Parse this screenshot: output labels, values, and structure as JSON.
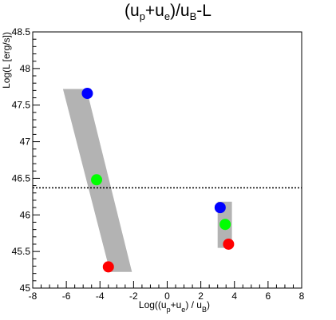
{
  "chart_data": {
    "type": "scatter",
    "title": {
      "parts": [
        {
          "t": "(u"
        },
        {
          "t": "p",
          "sub": true
        },
        {
          "t": "+u"
        },
        {
          "t": "e",
          "sub": true
        },
        {
          "t": ")/u"
        },
        {
          "t": "B",
          "sub": true
        },
        {
          "t": "-L"
        }
      ]
    },
    "xlabel": {
      "parts": [
        {
          "t": "Log((u"
        },
        {
          "t": "p",
          "sub": true
        },
        {
          "t": "+u"
        },
        {
          "t": "e",
          "sub": true
        },
        {
          "t": ") / u"
        },
        {
          "t": "B",
          "sub": true
        },
        {
          "t": ")"
        }
      ]
    },
    "ylabel": "Log(L [erg/s])",
    "xlim": [
      -8,
      8
    ],
    "ylim": [
      45,
      48.5
    ],
    "xticks": [
      -8,
      -6,
      -4,
      -2,
      0,
      2,
      4,
      6,
      8
    ],
    "xtick_labels": [
      "-8",
      "-6",
      "-4",
      "-2",
      "0",
      "2",
      "4",
      "6",
      "8"
    ],
    "yticks": [
      45,
      45.5,
      46,
      46.5,
      47,
      47.5,
      48,
      48.5
    ],
    "ytick_labels": [
      "45",
      "45.5",
      "46",
      "46.5",
      "47",
      "47.5",
      "48",
      "48.5"
    ],
    "grid": false,
    "reference_line": {
      "y": 46.37,
      "style": "dotted",
      "color": "#000000"
    },
    "bands": [
      {
        "polygon": [
          [
            -6.2,
            47.72
          ],
          [
            -4.8,
            47.72
          ],
          [
            -2.1,
            45.22
          ],
          [
            -3.4,
            45.22
          ]
        ],
        "color": "#b3b3b3"
      },
      {
        "polygon": [
          [
            3.0,
            46.18
          ],
          [
            3.85,
            46.18
          ],
          [
            3.85,
            45.55
          ],
          [
            3.0,
            45.55
          ]
        ],
        "color": "#b3b3b3"
      }
    ],
    "series": [
      {
        "color": "#0000ff",
        "points": [
          {
            "x": -4.75,
            "y": 47.66
          },
          {
            "x": 3.15,
            "y": 46.1
          }
        ]
      },
      {
        "color": "#00ff00",
        "points": [
          {
            "x": -4.2,
            "y": 46.48
          },
          {
            "x": 3.45,
            "y": 45.87
          }
        ]
      },
      {
        "color": "#ff0000",
        "points": [
          {
            "x": -3.5,
            "y": 45.29
          },
          {
            "x": 3.65,
            "y": 45.6
          }
        ]
      }
    ]
  }
}
